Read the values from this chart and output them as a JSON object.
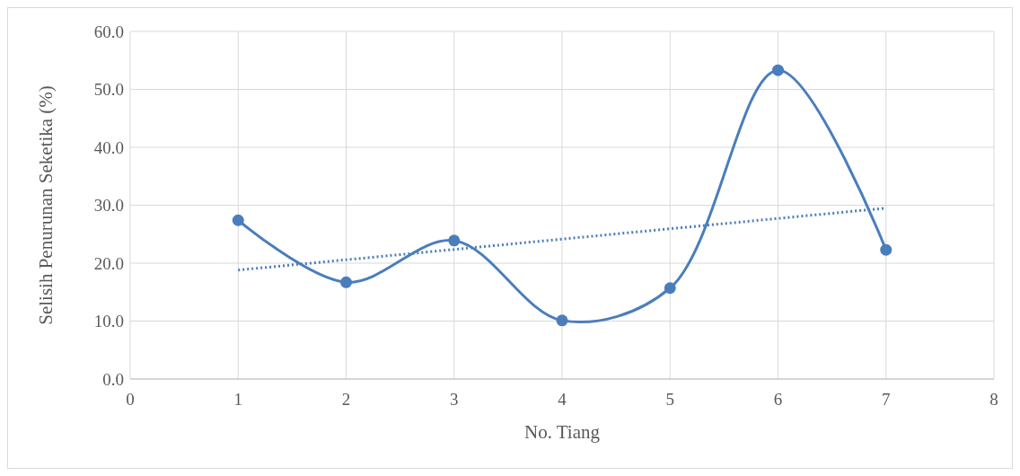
{
  "chart_data": {
    "type": "line",
    "xlabel": "No. Tiang",
    "ylabel": "Selisih Penurunan Seketika (%)",
    "x": [
      1,
      2,
      3,
      4,
      5,
      6,
      7
    ],
    "series": [
      {
        "color": "#4a7ebb",
        "values": [
          27.4,
          16.7,
          23.9,
          10.1,
          15.7,
          53.3,
          22.3
        ],
        "marker": "circle",
        "line_style": "solid"
      },
      {
        "type": "line",
        "color": "#4a7ebb",
        "x": [
          1,
          7
        ],
        "values": [
          18.8,
          29.5
        ],
        "marker": "none",
        "line_style": "dotted"
      }
    ],
    "xlim": [
      0,
      8
    ],
    "xticks": [
      0,
      1,
      2,
      3,
      4,
      5,
      6,
      7,
      8
    ],
    "ylim": [
      0,
      60
    ],
    "yticks": [
      {
        "value": 0,
        "label": "0.0"
      },
      {
        "value": 10,
        "label": "10.0"
      },
      {
        "value": 20,
        "label": "20.0"
      },
      {
        "value": 30,
        "label": "30.0"
      },
      {
        "value": 40,
        "label": "40.0"
      },
      {
        "value": 50,
        "label": "50.0"
      },
      {
        "value": 60,
        "label": "60.0"
      }
    ],
    "grid": true
  }
}
